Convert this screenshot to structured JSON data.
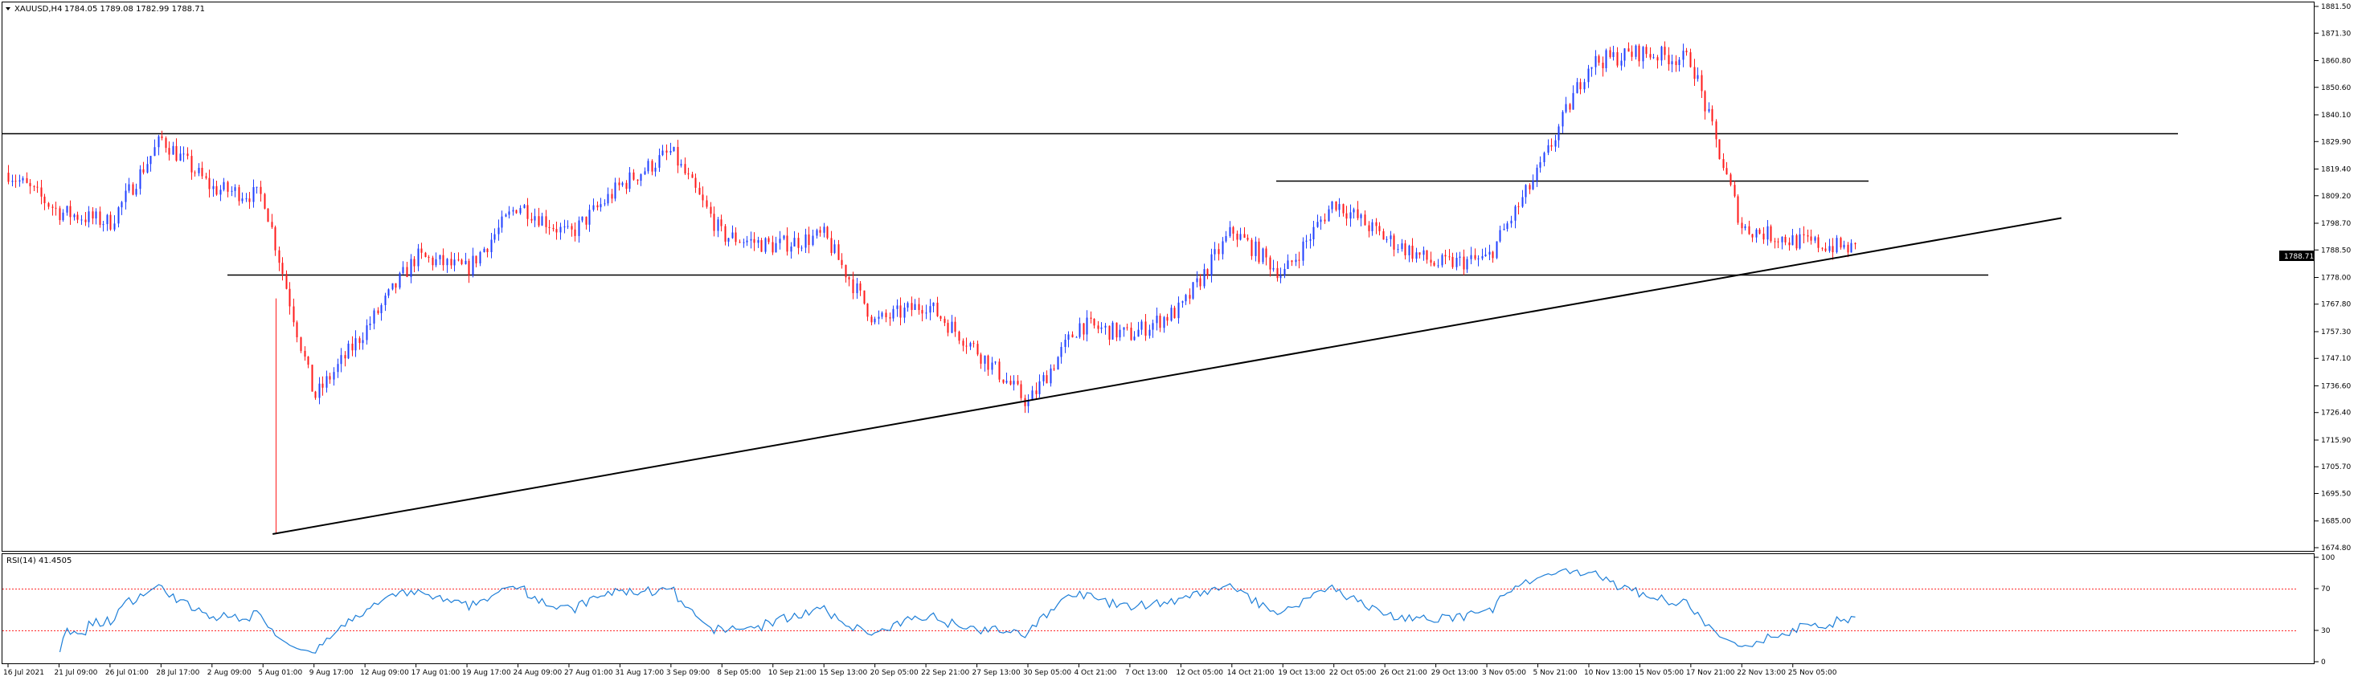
{
  "header": {
    "symbol": "XAUUSD,H4",
    "ohlc": "1784.05 1789.08 1782.99 1788.71"
  },
  "price_panel": {
    "current_price_label": "1788.71",
    "y_ticks": [
      "1881.50",
      "1871.30",
      "1860.80",
      "1850.60",
      "1840.10",
      "1829.90",
      "1819.40",
      "1809.20",
      "1798.70",
      "1788.50",
      "1778.00",
      "1767.80",
      "1757.30",
      "1747.10",
      "1736.60",
      "1726.40",
      "1715.90",
      "1705.70",
      "1695.50",
      "1685.00",
      "1674.80"
    ]
  },
  "rsi_panel": {
    "label": "RSI(14) 41.4505",
    "y_ticks": [
      "100",
      "70",
      "30",
      "0"
    ]
  },
  "x_ticks": [
    "16 Jul 2021",
    "21 Jul 09:00",
    "26 Jul 01:00",
    "28 Jul 17:00",
    "2 Aug 09:00",
    "5 Aug 01:00",
    "9 Aug 17:00",
    "12 Aug 09:00",
    "17 Aug 01:00",
    "19 Aug 17:00",
    "24 Aug 09:00",
    "27 Aug 01:00",
    "31 Aug 17:00",
    "3 Sep 09:00",
    "8 Sep 05:00",
    "10 Sep 21:00",
    "15 Sep 13:00",
    "20 Sep 05:00",
    "22 Sep 21:00",
    "27 Sep 13:00",
    "30 Sep 05:00",
    "4 Oct 21:00",
    "7 Oct 13:00",
    "12 Oct 05:00",
    "14 Oct 21:00",
    "19 Oct 13:00",
    "22 Oct 05:00",
    "26 Oct 21:00",
    "29 Oct 13:00",
    "3 Nov 05:00",
    "5 Nov 21:00",
    "10 Nov 13:00",
    "15 Nov 05:00",
    "17 Nov 21:00",
    "22 Nov 13:00",
    "25 Nov 05:00"
  ],
  "chart_data": {
    "type": "candlestick",
    "title": "XAUUSD,H4",
    "series": [
      {
        "name": "XAUUSD,H4",
        "kind": "candlestick",
        "colors": {
          "up": "#1f3fff",
          "down": "#ff1a1a"
        }
      },
      {
        "name": "RSI(14)",
        "kind": "line",
        "last_value": 41.4505,
        "color": "#1e7fd8"
      }
    ],
    "ylim": [
      1674.8,
      1881.5
    ],
    "rsi_ylim": [
      0,
      100
    ],
    "rsi_levels": [
      70,
      30
    ],
    "close_path": [
      {
        "x": "16 Jul 2021",
        "close": 1818
      },
      {
        "x": "21 Jul 09:00",
        "close": 1803
      },
      {
        "x": "26 Jul 01:00",
        "close": 1799
      },
      {
        "x": "28 Jul 17:00",
        "close": 1831
      },
      {
        "x": "2 Aug 09:00",
        "close": 1812
      },
      {
        "x": "5 Aug 01:00",
        "close": 1809
      },
      {
        "x": "9 Aug 17:00",
        "close": 1732
      },
      {
        "x": "12 Aug 09:00",
        "close": 1758
      },
      {
        "x": "17 Aug 01:00",
        "close": 1786
      },
      {
        "x": "19 Aug 17:00",
        "close": 1781
      },
      {
        "x": "24 Aug 09:00",
        "close": 1806
      },
      {
        "x": "27 Aug 01:00",
        "close": 1794
      },
      {
        "x": "31 Aug 17:00",
        "close": 1813
      },
      {
        "x": "3 Sep 09:00",
        "close": 1826
      },
      {
        "x": "8 Sep 05:00",
        "close": 1794
      },
      {
        "x": "10 Sep 21:00",
        "close": 1790
      },
      {
        "x": "15 Sep 13:00",
        "close": 1794
      },
      {
        "x": "20 Sep 05:00",
        "close": 1761
      },
      {
        "x": "22 Sep 21:00",
        "close": 1768
      },
      {
        "x": "27 Sep 13:00",
        "close": 1750
      },
      {
        "x": "30 Sep 05:00",
        "close": 1730
      },
      {
        "x": "4 Oct 21:00",
        "close": 1760
      },
      {
        "x": "7 Oct 13:00",
        "close": 1756
      },
      {
        "x": "12 Oct 05:00",
        "close": 1766
      },
      {
        "x": "14 Oct 21:00",
        "close": 1796
      },
      {
        "x": "19 Oct 13:00",
        "close": 1779
      },
      {
        "x": "22 Oct 05:00",
        "close": 1807
      },
      {
        "x": "26 Oct 21:00",
        "close": 1793
      },
      {
        "x": "29 Oct 13:00",
        "close": 1783
      },
      {
        "x": "3 Nov 05:00",
        "close": 1785
      },
      {
        "x": "5 Nov 21:00",
        "close": 1818
      },
      {
        "x": "10 Nov 13:00",
        "close": 1860
      },
      {
        "x": "15 Nov 05:00",
        "close": 1864
      },
      {
        "x": "17 Nov 21:00",
        "close": 1861
      },
      {
        "x": "22 Nov 13:00",
        "close": 1797
      },
      {
        "x": "25 Nov 05:00",
        "close": 1792
      }
    ],
    "horizontal_lines": [
      {
        "name": "resistance-upper",
        "y": 1833
      },
      {
        "name": "resistance-mid",
        "y": 1815
      },
      {
        "name": "support-lower",
        "y": 1779
      }
    ],
    "trendline": {
      "from": {
        "x": "5 Aug 01:00",
        "y": 1680
      },
      "to": {
        "x": "25 Nov 05:00",
        "y": 1783
      }
    },
    "last_close": 1788.71,
    "grid": false,
    "legend": "none"
  }
}
